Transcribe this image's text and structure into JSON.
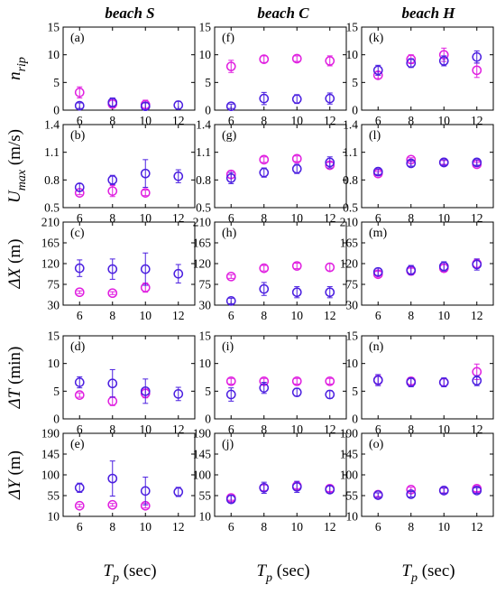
{
  "chart_data": {
    "type": "scatter",
    "columns": [
      "beach S",
      "beach C",
      "beach H"
    ],
    "x": [
      6,
      8,
      10,
      12
    ],
    "xlabel": {
      "main": "T",
      "sub": "p",
      "unit": "(sec)"
    },
    "xticks": [
      "6",
      "8",
      "10",
      "12"
    ],
    "colors": {
      "blue": "#4b1fe0",
      "magenta": "#e020e0"
    },
    "rows": [
      {
        "ylabel": {
          "main": "n",
          "sub": "rip",
          "unit": ""
        },
        "ylim": [
          0,
          15
        ],
        "yticks": [
          "0",
          "5",
          "10",
          "15"
        ]
      },
      {
        "ylabel": {
          "main": "U",
          "sub": "max",
          "unit": "(m/s)"
        },
        "ylim": [
          0.5,
          1.4
        ],
        "yticks": [
          "0.5",
          "0.8",
          "1.1",
          "1.4"
        ]
      },
      {
        "ylabel": {
          "main": "ΔX",
          "sub": "",
          "unit": "(m)"
        },
        "ylim": [
          30,
          210
        ],
        "yticks": [
          "30",
          "75",
          "120",
          "165",
          "210"
        ]
      },
      {
        "ylabel": {
          "main": "ΔT",
          "sub": "",
          "unit": "(min)"
        },
        "ylim": [
          0,
          15
        ],
        "yticks": [
          "0",
          "5",
          "10",
          "15"
        ]
      },
      {
        "ylabel": {
          "main": "ΔY",
          "sub": "",
          "unit": "(m)"
        },
        "ylim": [
          10,
          190
        ],
        "yticks": [
          "10",
          "55",
          "100",
          "145",
          "190"
        ]
      }
    ],
    "panels": [
      {
        "label": "(a)",
        "row": 0,
        "col": 0,
        "blue": [
          [
            6,
            0.8,
            0.5
          ],
          [
            8,
            1.4,
            0.8
          ],
          [
            10,
            0.7,
            0.6
          ],
          [
            12,
            0.9,
            0.7
          ]
        ],
        "magenta": [
          [
            6,
            3.2,
            1.0
          ],
          [
            8,
            1.1,
            0.7
          ],
          [
            10,
            1.0,
            0.8
          ]
        ]
      },
      {
        "label": "(b)",
        "row": 1,
        "col": 0,
        "blue": [
          [
            6,
            0.72,
            0.04
          ],
          [
            8,
            0.8,
            0.05
          ],
          [
            10,
            0.87,
            0.15
          ],
          [
            12,
            0.84,
            0.07
          ]
        ],
        "magenta": [
          [
            6,
            0.66,
            0.02
          ],
          [
            8,
            0.68,
            0.06
          ],
          [
            10,
            0.66,
            0.03
          ]
        ]
      },
      {
        "label": "(c)",
        "row": 2,
        "col": 0,
        "blue": [
          [
            6,
            110,
            18
          ],
          [
            8,
            108,
            22
          ],
          [
            10,
            108,
            35
          ],
          [
            12,
            98,
            20
          ]
        ],
        "magenta": [
          [
            6,
            58,
            3
          ],
          [
            8,
            56,
            3
          ],
          [
            10,
            68,
            10
          ]
        ]
      },
      {
        "label": "(d)",
        "row": 3,
        "col": 0,
        "blue": [
          [
            6,
            6.6,
            1.0
          ],
          [
            8,
            6.4,
            2.5
          ],
          [
            10,
            5.0,
            2.2
          ],
          [
            12,
            4.5,
            1.2
          ]
        ],
        "magenta": [
          [
            6,
            4.3,
            0.4
          ],
          [
            8,
            3.2,
            0.8
          ],
          [
            10,
            4.6,
            0.8
          ]
        ]
      },
      {
        "label": "(e)",
        "row": 4,
        "col": 0,
        "blue": [
          [
            6,
            72,
            10
          ],
          [
            8,
            92,
            38
          ],
          [
            10,
            65,
            30
          ],
          [
            12,
            63,
            10
          ]
        ],
        "magenta": [
          [
            6,
            33,
            3
          ],
          [
            8,
            35,
            3
          ],
          [
            10,
            33,
            5
          ]
        ]
      },
      {
        "label": "(f)",
        "row": 0,
        "col": 1,
        "blue": [
          [
            6,
            0.7,
            0.4
          ],
          [
            8,
            2.1,
            1.1
          ],
          [
            10,
            2.0,
            0.8
          ],
          [
            12,
            2.1,
            1.0
          ]
        ],
        "magenta": [
          [
            6,
            7.9,
            1.1
          ],
          [
            8,
            9.2,
            0.6
          ],
          [
            10,
            9.3,
            0.5
          ],
          [
            12,
            8.9,
            0.9
          ]
        ]
      },
      {
        "label": "(g)",
        "row": 1,
        "col": 1,
        "blue": [
          [
            6,
            0.82,
            0.06
          ],
          [
            8,
            0.88,
            0.05
          ],
          [
            10,
            0.92,
            0.05
          ],
          [
            12,
            0.99,
            0.06
          ]
        ],
        "magenta": [
          [
            6,
            0.86,
            0.04
          ],
          [
            8,
            1.02,
            0.03
          ],
          [
            10,
            1.03,
            0.03
          ],
          [
            12,
            0.96,
            0.03
          ]
        ]
      },
      {
        "label": "(h)",
        "row": 2,
        "col": 1,
        "blue": [
          [
            6,
            39,
            6
          ],
          [
            8,
            65,
            14
          ],
          [
            10,
            58,
            12
          ],
          [
            12,
            58,
            12
          ]
        ],
        "magenta": [
          [
            6,
            92,
            4
          ],
          [
            8,
            110,
            6
          ],
          [
            10,
            115,
            6
          ],
          [
            12,
            112,
            8
          ]
        ]
      },
      {
        "label": "(i)",
        "row": 3,
        "col": 1,
        "blue": [
          [
            6,
            4.4,
            1.2
          ],
          [
            8,
            5.6,
            1.0
          ],
          [
            10,
            4.8,
            0.7
          ],
          [
            12,
            4.4,
            0.7
          ]
        ],
        "magenta": [
          [
            6,
            6.8,
            0.5
          ],
          [
            8,
            6.8,
            0.5
          ],
          [
            10,
            6.8,
            0.5
          ],
          [
            12,
            6.8,
            0.5
          ]
        ]
      },
      {
        "label": "(j)",
        "row": 4,
        "col": 1,
        "blue": [
          [
            6,
            47,
            8
          ],
          [
            8,
            72,
            12
          ],
          [
            10,
            74,
            12
          ],
          [
            12,
            68,
            8
          ]
        ],
        "magenta": [
          [
            6,
            50,
            5
          ],
          [
            8,
            72,
            6
          ],
          [
            10,
            76,
            6
          ],
          [
            12,
            70,
            6
          ]
        ]
      },
      {
        "label": "(k)",
        "row": 0,
        "col": 2,
        "blue": [
          [
            6,
            7.2,
            0.9
          ],
          [
            8,
            8.5,
            0.8
          ],
          [
            10,
            8.9,
            0.9
          ],
          [
            12,
            9.6,
            1.1
          ]
        ],
        "magenta": [
          [
            6,
            6.3,
            0.6
          ],
          [
            8,
            9.2,
            0.8
          ],
          [
            10,
            10.0,
            1.2
          ],
          [
            12,
            7.2,
            1.3
          ]
        ]
      },
      {
        "label": "(l)",
        "row": 1,
        "col": 2,
        "blue": [
          [
            6,
            0.89,
            0.03
          ],
          [
            8,
            0.98,
            0.03
          ],
          [
            10,
            0.99,
            0.03
          ],
          [
            12,
            0.99,
            0.03
          ]
        ],
        "magenta": [
          [
            6,
            0.87,
            0.02
          ],
          [
            8,
            1.02,
            0.02
          ],
          [
            10,
            0.99,
            0.02
          ],
          [
            12,
            0.97,
            0.02
          ]
        ]
      },
      {
        "label": "(m)",
        "row": 2,
        "col": 2,
        "blue": [
          [
            6,
            102,
            8
          ],
          [
            8,
            106,
            10
          ],
          [
            10,
            114,
            10
          ],
          [
            12,
            118,
            12
          ]
        ],
        "magenta": [
          [
            6,
            97,
            6
          ],
          [
            8,
            104,
            6
          ],
          [
            10,
            110,
            8
          ],
          [
            12,
            120,
            10
          ]
        ]
      },
      {
        "label": "(n)",
        "row": 3,
        "col": 2,
        "blue": [
          [
            6,
            7.0,
            1.0
          ],
          [
            8,
            6.6,
            0.8
          ],
          [
            10,
            6.6,
            0.8
          ],
          [
            12,
            6.9,
            0.9
          ]
        ],
        "magenta": [
          [
            6,
            7.0,
            0.8
          ],
          [
            8,
            6.8,
            0.6
          ],
          [
            10,
            6.6,
            0.6
          ],
          [
            12,
            8.5,
            1.4
          ]
        ]
      },
      {
        "label": "(o)",
        "row": 4,
        "col": 2,
        "blue": [
          [
            6,
            56,
            5
          ],
          [
            8,
            58,
            6
          ],
          [
            10,
            66,
            6
          ],
          [
            12,
            66,
            6
          ]
        ],
        "magenta": [
          [
            6,
            57,
            4
          ],
          [
            8,
            68,
            5
          ],
          [
            10,
            66,
            5
          ],
          [
            12,
            70,
            6
          ]
        ]
      }
    ]
  }
}
